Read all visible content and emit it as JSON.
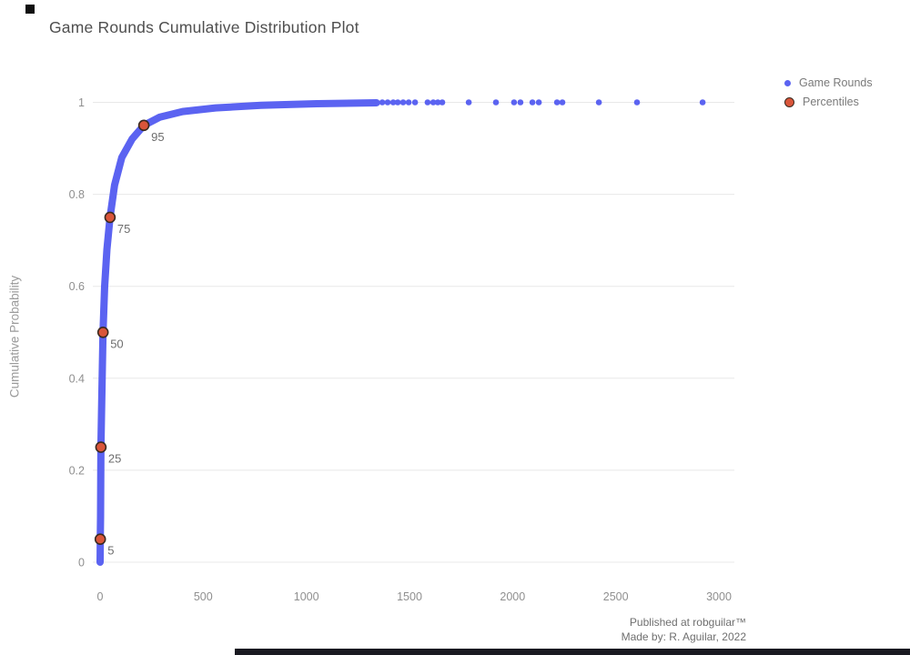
{
  "page": {
    "title": "Game Rounds Cumulative Distribution Plot",
    "footer_line1": "Published at robguilar™",
    "footer_line2": "Made by:  R. Aguilar, 2022"
  },
  "legend": {
    "items": [
      {
        "label": "Game Rounds",
        "color": "#5b63f1"
      },
      {
        "label": "Percentiles",
        "color": "#d9553a",
        "stroke": "#3a2a20"
      }
    ]
  },
  "chart_data": {
    "type": "scatter",
    "title": "Game Rounds Cumulative Distribution Plot",
    "xlabel": "",
    "ylabel": "Cumulative Probability",
    "x_ticks": [
      0,
      500,
      1000,
      1500,
      2000,
      2500,
      3000
    ],
    "y_ticks": [
      0,
      0.2,
      0.4,
      0.6,
      0.8,
      1
    ],
    "xlim": [
      -80,
      3080
    ],
    "ylim": [
      0,
      1.02
    ],
    "grid": "horizontal",
    "background": "#ffffff",
    "gridline_color": "#e8e8e8",
    "tick_label_color": "#8f8f8f",
    "series": [
      {
        "name": "Game Rounds",
        "type": "cdf_curve",
        "color": "#5b63f1",
        "points": [
          [
            0,
            0
          ],
          [
            0.5,
            0.02
          ],
          [
            1,
            0.05
          ],
          [
            2,
            0.1
          ],
          [
            4,
            0.25
          ],
          [
            8,
            0.35
          ],
          [
            14,
            0.5
          ],
          [
            22,
            0.6
          ],
          [
            33,
            0.68
          ],
          [
            48,
            0.75
          ],
          [
            70,
            0.82
          ],
          [
            105,
            0.88
          ],
          [
            155,
            0.92
          ],
          [
            212,
            0.95
          ],
          [
            290,
            0.968
          ],
          [
            400,
            0.98
          ],
          [
            560,
            0.988
          ],
          [
            780,
            0.9935
          ],
          [
            1050,
            0.997
          ],
          [
            1340,
            0.999
          ]
        ],
        "top_dots_x": [
          1368,
          1394,
          1421,
          1443,
          1469,
          1496,
          1527,
          1588,
          1615,
          1637,
          1659,
          1787,
          1919,
          2007,
          2038,
          2096,
          2127,
          2215,
          2241,
          2418,
          2603,
          2921
        ],
        "top_dots_y": 1
      },
      {
        "name": "Percentiles",
        "type": "markers",
        "color": "#d9553a",
        "stroke": "#3a2a20",
        "points": [
          [
            1,
            0.05
          ],
          [
            4,
            0.25
          ],
          [
            14,
            0.5
          ],
          [
            48,
            0.75
          ],
          [
            212,
            0.95
          ]
        ],
        "labels": [
          "5",
          "25",
          "50",
          "75",
          "95"
        ],
        "label_color": "#6e6e6e"
      }
    ]
  }
}
